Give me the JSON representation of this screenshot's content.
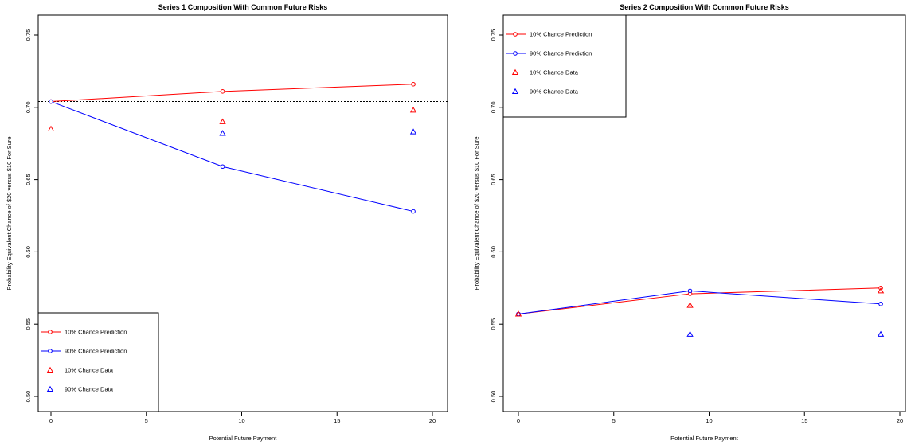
{
  "chart_data": [
    {
      "type": "line",
      "title": "Series 1 Composition With Common Future Risks",
      "xlabel": "Potential Future Payment",
      "ylabel": "Probability Equivalent Chance of $20 versus $10 For Sure",
      "xlim": [
        0,
        20
      ],
      "ylim": [
        0.5,
        0.75
      ],
      "xticks": [
        "0",
        "5",
        "10",
        "15",
        "20"
      ],
      "yticks": [
        "0.50",
        "0.55",
        "0.60",
        "0.65",
        "0.70",
        "0.75"
      ],
      "reference_line": 0.704,
      "legend_position": "bottom-left",
      "series": [
        {
          "name": "10% Chance Prediction",
          "kind": "line",
          "marker": "circle",
          "color": "#ff0000",
          "x": [
            0,
            9,
            19
          ],
          "y": [
            0.704,
            0.711,
            0.716
          ]
        },
        {
          "name": "90% Chance Prediction",
          "kind": "line",
          "marker": "circle",
          "color": "#0000ff",
          "x": [
            0,
            9,
            19
          ],
          "y": [
            0.704,
            0.659,
            0.628
          ]
        },
        {
          "name": "10% Chance Data",
          "kind": "points",
          "marker": "triangle",
          "color": "#ff0000",
          "x": [
            0,
            9,
            19
          ],
          "y": [
            0.685,
            0.69,
            0.698
          ]
        },
        {
          "name": "90% Chance Data",
          "kind": "points",
          "marker": "triangle",
          "color": "#0000ff",
          "x": [
            9,
            19
          ],
          "y": [
            0.682,
            0.683
          ]
        }
      ]
    },
    {
      "type": "line",
      "title": "Series 2 Composition With Common Future Risks",
      "xlabel": "Potential Future Payment",
      "ylabel": "Probability Equivalent Chance of $20 versus $10 For Sure",
      "xlim": [
        0,
        20
      ],
      "ylim": [
        0.5,
        0.75
      ],
      "xticks": [
        "0",
        "5",
        "10",
        "15",
        "20"
      ],
      "yticks": [
        "0.50",
        "0.55",
        "0.60",
        "0.65",
        "0.70",
        "0.75"
      ],
      "reference_line": 0.557,
      "legend_position": "top-left",
      "series": [
        {
          "name": "10% Chance Prediction",
          "kind": "line",
          "marker": "circle",
          "color": "#ff0000",
          "x": [
            0,
            9,
            19
          ],
          "y": [
            0.557,
            0.571,
            0.575
          ]
        },
        {
          "name": "90% Chance Prediction",
          "kind": "line",
          "marker": "circle",
          "color": "#0000ff",
          "x": [
            0,
            9,
            19
          ],
          "y": [
            0.557,
            0.573,
            0.564
          ]
        },
        {
          "name": "10% Chance Data",
          "kind": "points",
          "marker": "triangle",
          "color": "#ff0000",
          "x": [
            0,
            9,
            19
          ],
          "y": [
            0.557,
            0.563,
            0.573
          ]
        },
        {
          "name": "90% Chance Data",
          "kind": "points",
          "marker": "triangle",
          "color": "#0000ff",
          "x": [
            9,
            19
          ],
          "y": [
            0.543,
            0.543
          ]
        }
      ]
    }
  ]
}
